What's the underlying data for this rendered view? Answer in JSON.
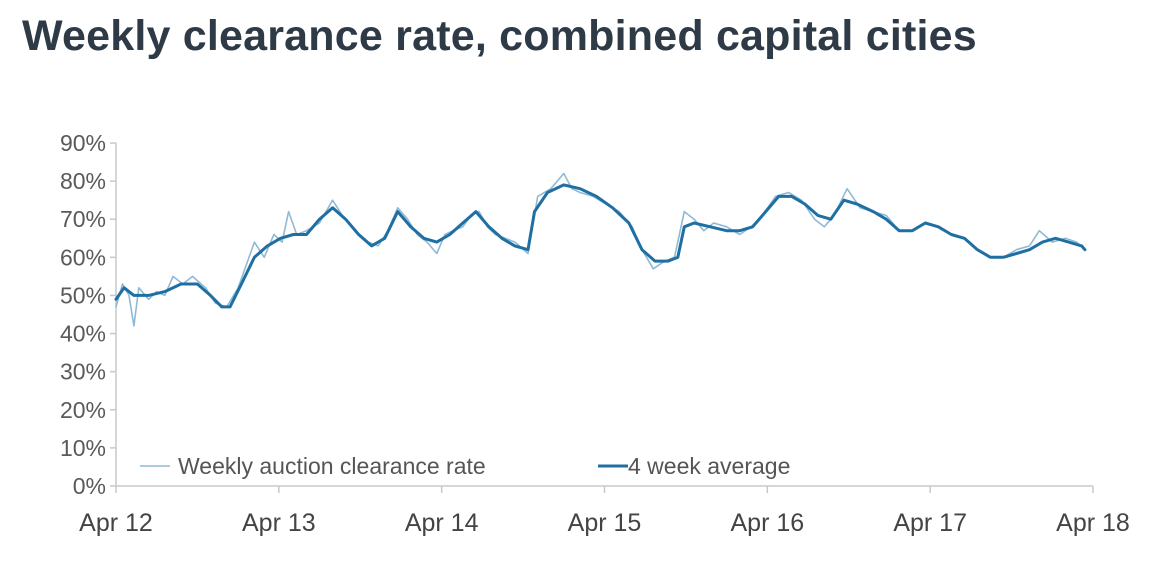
{
  "title": "Weekly clearance rate, combined capital cities",
  "colors": {
    "weekly": "#8fbad6",
    "average": "#1f6fa3",
    "axis": "#c8c8c8",
    "title": "#2e3a46"
  },
  "chart_data": {
    "type": "line",
    "title": "Weekly clearance rate, combined capital cities",
    "xlabel": "",
    "ylabel": "",
    "ylim": [
      0,
      90
    ],
    "yticks": [
      "0%",
      "10%",
      "20%",
      "30%",
      "40%",
      "50%",
      "60%",
      "70%",
      "80%",
      "90%"
    ],
    "xticks": [
      "Apr 12",
      "Apr 13",
      "Apr 14",
      "Apr 15",
      "Apr 16",
      "Apr 17",
      "Apr 18"
    ],
    "xlim": [
      2012.25,
      2018.25
    ],
    "grid": false,
    "legend_position": "bottom-left",
    "series": [
      {
        "name": "Weekly auction clearance rate",
        "points": [
          [
            2012.25,
            47
          ],
          [
            2012.29,
            53
          ],
          [
            2012.33,
            50
          ],
          [
            2012.36,
            42
          ],
          [
            2012.39,
            52
          ],
          [
            2012.45,
            49
          ],
          [
            2012.5,
            51
          ],
          [
            2012.55,
            50
          ],
          [
            2012.6,
            55
          ],
          [
            2012.66,
            53
          ],
          [
            2012.72,
            55
          ],
          [
            2012.8,
            52
          ],
          [
            2012.86,
            48
          ],
          [
            2012.93,
            47
          ],
          [
            2013.0,
            52
          ],
          [
            2013.05,
            58
          ],
          [
            2013.1,
            64
          ],
          [
            2013.16,
            60
          ],
          [
            2013.22,
            66
          ],
          [
            2013.27,
            64
          ],
          [
            2013.31,
            72
          ],
          [
            2013.36,
            66
          ],
          [
            2013.42,
            67
          ],
          [
            2013.5,
            69
          ],
          [
            2013.58,
            75
          ],
          [
            2013.64,
            71
          ],
          [
            2013.72,
            67
          ],
          [
            2013.8,
            64
          ],
          [
            2013.86,
            63
          ],
          [
            2013.92,
            67
          ],
          [
            2013.98,
            73
          ],
          [
            2014.04,
            70
          ],
          [
            2014.1,
            66
          ],
          [
            2014.16,
            64
          ],
          [
            2014.22,
            61
          ],
          [
            2014.27,
            66
          ],
          [
            2014.32,
            67
          ],
          [
            2014.38,
            68
          ],
          [
            2014.43,
            71
          ],
          [
            2014.48,
            72
          ],
          [
            2014.53,
            68
          ],
          [
            2014.58,
            66
          ],
          [
            2014.64,
            65
          ],
          [
            2014.7,
            64
          ],
          [
            2014.78,
            61
          ],
          [
            2014.84,
            76
          ],
          [
            2014.92,
            78
          ],
          [
            2015.0,
            82
          ],
          [
            2015.05,
            78
          ],
          [
            2015.1,
            77
          ],
          [
            2015.18,
            76
          ],
          [
            2015.26,
            74
          ],
          [
            2015.34,
            72
          ],
          [
            2015.42,
            68
          ],
          [
            2015.48,
            62
          ],
          [
            2015.55,
            57
          ],
          [
            2015.62,
            59
          ],
          [
            2015.68,
            60
          ],
          [
            2015.74,
            72
          ],
          [
            2015.8,
            70
          ],
          [
            2015.86,
            67
          ],
          [
            2015.92,
            69
          ],
          [
            2016.0,
            68
          ],
          [
            2016.08,
            66
          ],
          [
            2016.15,
            68
          ],
          [
            2016.22,
            71
          ],
          [
            2016.3,
            76
          ],
          [
            2016.38,
            77
          ],
          [
            2016.46,
            75
          ],
          [
            2016.54,
            70
          ],
          [
            2016.6,
            68
          ],
          [
            2016.66,
            71
          ],
          [
            2016.74,
            78
          ],
          [
            2016.82,
            73
          ],
          [
            2016.9,
            72
          ],
          [
            2016.98,
            71
          ],
          [
            2017.06,
            67
          ],
          [
            2017.14,
            67
          ],
          [
            2017.22,
            69
          ],
          [
            2017.3,
            68
          ],
          [
            2017.38,
            66
          ],
          [
            2017.46,
            65
          ],
          [
            2017.54,
            62
          ],
          [
            2017.62,
            60
          ],
          [
            2017.7,
            60
          ],
          [
            2017.78,
            62
          ],
          [
            2017.86,
            63
          ],
          [
            2017.92,
            67
          ],
          [
            2018.0,
            64
          ],
          [
            2018.08,
            65
          ],
          [
            2018.15,
            64
          ],
          [
            2018.2,
            62
          ]
        ]
      },
      {
        "name": "4 week average",
        "points": [
          [
            2012.25,
            49
          ],
          [
            2012.3,
            52
          ],
          [
            2012.36,
            50
          ],
          [
            2012.45,
            50
          ],
          [
            2012.55,
            51
          ],
          [
            2012.65,
            53
          ],
          [
            2012.75,
            53
          ],
          [
            2012.83,
            50
          ],
          [
            2012.9,
            47
          ],
          [
            2012.95,
            47
          ],
          [
            2013.02,
            53
          ],
          [
            2013.1,
            60
          ],
          [
            2013.18,
            63
          ],
          [
            2013.26,
            65
          ],
          [
            2013.34,
            66
          ],
          [
            2013.42,
            66
          ],
          [
            2013.5,
            70
          ],
          [
            2013.58,
            73
          ],
          [
            2013.66,
            70
          ],
          [
            2013.74,
            66
          ],
          [
            2013.82,
            63
          ],
          [
            2013.9,
            65
          ],
          [
            2013.98,
            72
          ],
          [
            2014.06,
            68
          ],
          [
            2014.14,
            65
          ],
          [
            2014.22,
            64
          ],
          [
            2014.3,
            66
          ],
          [
            2014.38,
            69
          ],
          [
            2014.46,
            72
          ],
          [
            2014.54,
            68
          ],
          [
            2014.62,
            65
          ],
          [
            2014.7,
            63
          ],
          [
            2014.78,
            62
          ],
          [
            2014.82,
            72
          ],
          [
            2014.9,
            77
          ],
          [
            2015.0,
            79
          ],
          [
            2015.1,
            78
          ],
          [
            2015.2,
            76
          ],
          [
            2015.3,
            73
          ],
          [
            2015.4,
            69
          ],
          [
            2015.48,
            62
          ],
          [
            2015.56,
            59
          ],
          [
            2015.64,
            59
          ],
          [
            2015.7,
            60
          ],
          [
            2015.74,
            68
          ],
          [
            2015.8,
            69
          ],
          [
            2015.9,
            68
          ],
          [
            2016.0,
            67
          ],
          [
            2016.08,
            67
          ],
          [
            2016.16,
            68
          ],
          [
            2016.24,
            72
          ],
          [
            2016.32,
            76
          ],
          [
            2016.4,
            76
          ],
          [
            2016.48,
            74
          ],
          [
            2016.56,
            71
          ],
          [
            2016.64,
            70
          ],
          [
            2016.72,
            75
          ],
          [
            2016.8,
            74
          ],
          [
            2016.9,
            72
          ],
          [
            2016.98,
            70
          ],
          [
            2017.06,
            67
          ],
          [
            2017.14,
            67
          ],
          [
            2017.22,
            69
          ],
          [
            2017.3,
            68
          ],
          [
            2017.38,
            66
          ],
          [
            2017.46,
            65
          ],
          [
            2017.54,
            62
          ],
          [
            2017.62,
            60
          ],
          [
            2017.7,
            60
          ],
          [
            2017.78,
            61
          ],
          [
            2017.86,
            62
          ],
          [
            2017.94,
            64
          ],
          [
            2018.02,
            65
          ],
          [
            2018.1,
            64
          ],
          [
            2018.18,
            63
          ],
          [
            2018.2,
            62
          ]
        ]
      }
    ]
  }
}
